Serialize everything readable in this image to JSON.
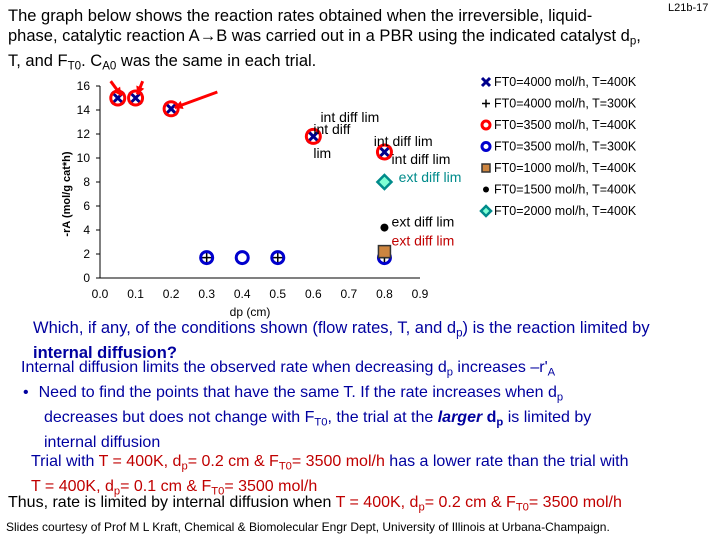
{
  "slide_id": "L21b-17",
  "intro": {
    "line1": "The graph below shows the reaction rates obtained when the irreversible, liquid-",
    "line2": "phase, catalytic reaction A→B was carried out in a PBR using the indicated catalyst d",
    "line2_sub": "p",
    "line2_end": ",",
    "line3a": "T, and F",
    "line3_sub1": "T0",
    "line3b": ". C",
    "line3_sub2": "A0",
    "line3c": " was the same in each trial."
  },
  "chart_data": {
    "type": "scatter",
    "ylabel": "-rA (mol/g cat*h)",
    "xlabel": "dp (cm)",
    "xlim": [
      0.0,
      0.9
    ],
    "ylim": [
      0,
      16
    ],
    "xticks": [
      "0.0",
      "0.1",
      "0.2",
      "0.3",
      "0.4",
      "0.5",
      "0.6",
      "0.7",
      "0.8",
      "0.9"
    ],
    "yticks": [
      "0",
      "2",
      "4",
      "6",
      "8",
      "10",
      "12",
      "14",
      "16"
    ],
    "series": [
      {
        "name": "FT0=4000 mol/h, T=400K",
        "marker": "x",
        "color": "#00008b",
        "points": [
          [
            0.05,
            15.0
          ],
          [
            0.1,
            15.0
          ],
          [
            0.2,
            14.1
          ],
          [
            0.6,
            11.8
          ],
          [
            0.8,
            10.5
          ]
        ]
      },
      {
        "name": "FT0=4000 mol/h, T=300K",
        "marker": "plus",
        "color": "#000000",
        "points": [
          [
            0.3,
            1.7
          ],
          [
            0.5,
            1.7
          ],
          [
            0.8,
            1.7
          ]
        ]
      },
      {
        "name": "FT0=3500 mol/h, T=400K",
        "marker": "circle",
        "color": "#ff0000",
        "points": [
          [
            0.05,
            15.0
          ],
          [
            0.1,
            15.0
          ],
          [
            0.2,
            14.1
          ],
          [
            0.6,
            11.8
          ],
          [
            0.8,
            10.5
          ]
        ]
      },
      {
        "name": "FT0=3500 mol/h, T=300K",
        "marker": "circle",
        "color": "#0000cd",
        "points": [
          [
            0.3,
            1.7
          ],
          [
            0.4,
            1.7
          ],
          [
            0.5,
            1.7
          ],
          [
            0.8,
            1.7
          ]
        ]
      },
      {
        "name": "FT0=1000 mol/h, T=400K",
        "marker": "square",
        "color": "#cd853f",
        "points": [
          [
            0.8,
            2.2
          ]
        ]
      },
      {
        "name": "FT0=1500 mol/h, T=400K",
        "marker": "dot",
        "color": "#000000",
        "points": [
          [
            0.8,
            4.2
          ]
        ]
      },
      {
        "name": "FT0=2000 mol/h, T=400K",
        "marker": "diamond",
        "color": "#008b8b",
        "points": [
          [
            0.8,
            8.0
          ]
        ]
      }
    ],
    "annotations": [
      {
        "text": "int diff lim",
        "color": "#000000",
        "x": 0.62,
        "y": 13.0
      },
      {
        "text": "int diff",
        "color": "#000000",
        "x": 0.6,
        "y": 12.0
      },
      {
        "text": "lim",
        "color": "#000000",
        "x": 0.6,
        "y": 10.0
      },
      {
        "text": "int diff lim",
        "color": "#000000",
        "x": 0.77,
        "y": 11.0
      },
      {
        "text": "int diff lim",
        "color": "#000000",
        "x": 0.82,
        "y": 9.5
      },
      {
        "text": "ext diff lim",
        "color": "#008b8b",
        "x": 0.84,
        "y": 8.0
      },
      {
        "text": "ext diff lim",
        "color": "#000000",
        "x": 0.82,
        "y": 4.3
      },
      {
        "text": "ext diff lim",
        "color": "#c00000",
        "x": 0.82,
        "y": 2.7
      }
    ],
    "arrows": [
      {
        "label": "",
        "color": "#ff0000"
      },
      {
        "label": "",
        "color": "#ff0000"
      },
      {
        "label": "",
        "color": "#ff0000"
      }
    ],
    "legend_position": "right"
  },
  "question": {
    "text": "Which, if any, of the conditions shown (flow rates, T, and d",
    "sub": "p",
    "text_end": ") is the reaction limited by",
    "line2": "internal diffusion?"
  },
  "explain": {
    "line1": "Internal diffusion limits the observed rate when decreasing d",
    "line1_sub": "p",
    "line1_end": " increases –r'",
    "line1_sub2": "A",
    "bullet": "•",
    "line2": "Need to find the points that have the same T. If the rate increases when d",
    "line2_sub": "p",
    "line3a": "decreases but does not change with F",
    "line3_sub": "T0",
    "line3b": ", the trial at the ",
    "line3_bi": "larger",
    "line3_bd": " d",
    "line3_bd_sub": "p",
    "line3c": " is limited by",
    "line4": "internal diffusion",
    "line5a": "Trial with ",
    "line5b": "T = 400K, d",
    "line5_sub": "p",
    "line5c": "= 0.2 cm & F",
    "line5_sub2": "T0",
    "line5d": "= 3500 mol/h",
    "line5e": " has a lower rate than the trial with",
    "line6a": "T = 400K, d",
    "line6_sub": "p",
    "line6b": "= 0.1 cm & F",
    "line6_sub2": "T0",
    "line6c": "= 3500 mol/h"
  },
  "conclusion": {
    "a": "Thus, rate is limited by internal diffusion when ",
    "b": "T = 400K, d",
    "b_sub": "p",
    "c": "= 0.2 cm & F",
    "c_sub": "T0",
    "d": "= 3500 mol/h"
  },
  "credits": "Slides courtesy of Prof M L Kraft, Chemical & Biomolecular Engr Dept, University of Illinois at Urbana-Champaign."
}
